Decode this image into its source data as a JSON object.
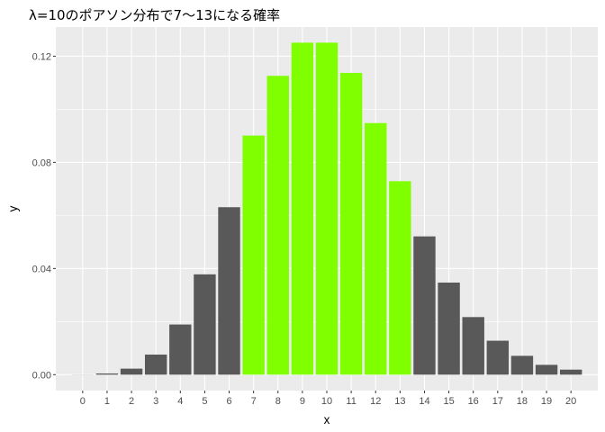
{
  "chart_data": {
    "type": "bar",
    "title": "λ=10のポアソン分布で7～13になる確率",
    "xlabel": "x",
    "ylabel": "y",
    "categories": [
      "0",
      "1",
      "2",
      "3",
      "4",
      "5",
      "6",
      "7",
      "8",
      "9",
      "10",
      "11",
      "12",
      "13",
      "14",
      "15",
      "16",
      "17",
      "18",
      "19",
      "20"
    ],
    "values": [
      4.54e-05,
      0.000454,
      0.00227,
      0.00757,
      0.0189,
      0.0378,
      0.0631,
      0.0901,
      0.1126,
      0.1251,
      0.1251,
      0.1137,
      0.0948,
      0.0729,
      0.0521,
      0.0347,
      0.0217,
      0.0128,
      0.0071,
      0.0037,
      0.0019
    ],
    "highlight_range": [
      7,
      13
    ],
    "ylim": [
      -0.006,
      0.131
    ],
    "yticks": [
      0.0,
      0.04,
      0.08,
      0.12
    ],
    "ytick_labels": [
      "0.00",
      "0.04",
      "0.08",
      "0.12"
    ],
    "grid": true,
    "colors": {
      "panel_background": "#ebebeb",
      "grid": "#ffffff",
      "bar_default": "#595959",
      "bar_highlight": "#7fff00"
    }
  }
}
